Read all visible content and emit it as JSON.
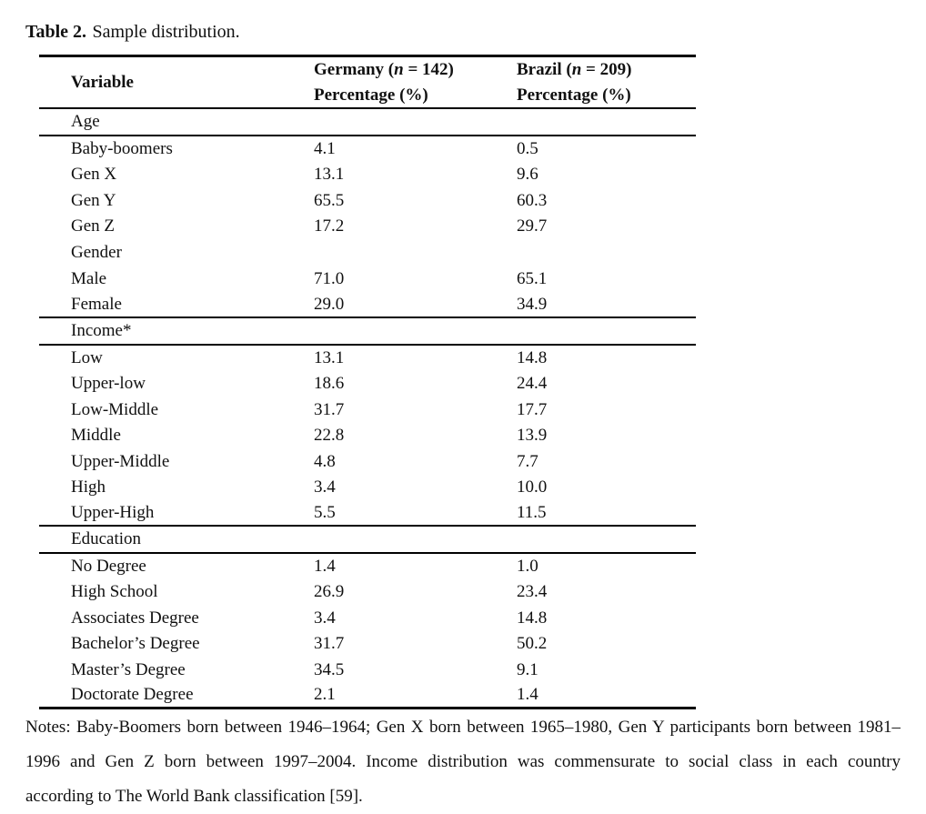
{
  "caption": {
    "label": "Table 2.",
    "text": "Sample distribution."
  },
  "table": {
    "header": {
      "variable": "Variable",
      "germany": {
        "prefix": "Germany (",
        "n": "n",
        "suffix": " = 142)",
        "subtitle": "Percentage (%)"
      },
      "brazil": {
        "prefix": "Brazil (",
        "n": "n",
        "suffix": " = 209)",
        "subtitle": "Percentage (%)"
      }
    },
    "rows": [
      {
        "type": "section",
        "label": "Age",
        "rule_below": true
      },
      {
        "type": "data",
        "label": "Baby-boomers",
        "germany": "4.1",
        "brazil": "0.5"
      },
      {
        "type": "data",
        "label": "Gen X",
        "germany": "13.1",
        "brazil": "9.6"
      },
      {
        "type": "data",
        "label": "Gen Y",
        "germany": "65.5",
        "brazil": "60.3"
      },
      {
        "type": "data",
        "label": "Gen Z",
        "germany": "17.2",
        "brazil": "29.7"
      },
      {
        "type": "section",
        "label": "Gender",
        "rule_below": false
      },
      {
        "type": "data",
        "label": "Male",
        "germany": "71.0",
        "brazil": "65.1"
      },
      {
        "type": "data",
        "label": "Female",
        "germany": "29.0",
        "brazil": "34.9",
        "rule_below": true
      },
      {
        "type": "section",
        "label": "Income*",
        "rule_below": true
      },
      {
        "type": "data",
        "label": "Low",
        "germany": "13.1",
        "brazil": "14.8"
      },
      {
        "type": "data",
        "label": "Upper-low",
        "germany": "18.6",
        "brazil": "24.4"
      },
      {
        "type": "data",
        "label": "Low-Middle",
        "germany": "31.7",
        "brazil": "17.7"
      },
      {
        "type": "data",
        "label": "Middle",
        "germany": "22.8",
        "brazil": "13.9"
      },
      {
        "type": "data",
        "label": "Upper-Middle",
        "germany": "4.8",
        "brazil": "7.7"
      },
      {
        "type": "data",
        "label": "High",
        "germany": "3.4",
        "brazil": "10.0"
      },
      {
        "type": "data",
        "label": "Upper-High",
        "germany": "5.5",
        "brazil": "11.5",
        "rule_below": true
      },
      {
        "type": "section",
        "label": "Education",
        "rule_below": true
      },
      {
        "type": "data",
        "label": "No Degree",
        "germany": "1.4",
        "brazil": "1.0"
      },
      {
        "type": "data",
        "label": "High School",
        "germany": "26.9",
        "brazil": "23.4"
      },
      {
        "type": "data",
        "label": "Associates Degree",
        "germany": "3.4",
        "brazil": "14.8"
      },
      {
        "type": "data",
        "label": "Bachelor’s Degree",
        "germany": "31.7",
        "brazil": "50.2"
      },
      {
        "type": "data",
        "label": "Master’s Degree",
        "germany": "34.5",
        "brazil": "9.1"
      },
      {
        "type": "data",
        "label": "Doctorate Degree",
        "germany": "2.1",
        "brazil": "1.4",
        "thick_below": true
      }
    ]
  },
  "notes": {
    "lines": [
      "Notes: Baby-Boomers born between 1946–1964; Gen X born between 1965–1980, Gen Y participants born between 1981–",
      "1996 and Gen Z born between 1997–2004. Income distribution was commensurate to social class in each country",
      "according to The World Bank classification [59]."
    ]
  },
  "colors": {
    "text": "#111111",
    "background": "#ffffff",
    "rule": "#000000"
  }
}
